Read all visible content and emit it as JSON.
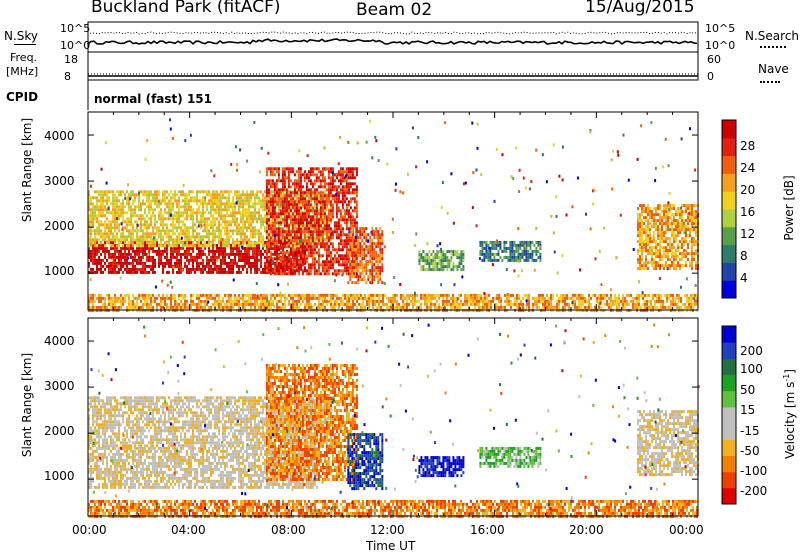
{
  "header": {
    "site": "Buckland Park (fitACF)",
    "beam": "Beam 02",
    "date": "15/Aug/2015"
  },
  "strip_panels": {
    "nsky_label": "N.Sky",
    "nsky_top_tick": "10^5",
    "nsky_bottom_tick": "10^0",
    "nsearch_label": "N.Search",
    "nsearch_top_tick": "10^5",
    "nsearch_bottom_tick": "10^0",
    "freq_label": "Freq.",
    "freq_unit": "[MHz]",
    "freq_top_tick": "18",
    "freq_bottom_tick": "8",
    "nave_label": "Nave",
    "nave_top_tick": "60",
    "nave_bottom_tick": "0",
    "cpid_label": "CPID",
    "cpid_value": "normal (fast) 151"
  },
  "chart_data": [
    {
      "type": "heatmap",
      "name": "power",
      "ylabel": "Slant Range [km]",
      "yticks": [
        "1000",
        "2000",
        "3000",
        "4000"
      ],
      "ylim": [
        200,
        4500
      ],
      "xlim_hours": [
        0,
        24
      ],
      "colorbar_label": "Power [dB]",
      "colorbar_ticks": [
        "4",
        "8",
        "12",
        "16",
        "20",
        "24",
        "28"
      ],
      "colorbar_colors": [
        "#0000dd",
        "#2244aa",
        "#2e7d6a",
        "#5aa04a",
        "#b0d040",
        "#f0d020",
        "#f5a020",
        "#ee6010",
        "#e02010",
        "#cc0000"
      ],
      "echo_regions": [
        {
          "t0": 0.0,
          "t1": 8.5,
          "r0": 1000,
          "r1": 1700,
          "level": 9
        },
        {
          "t0": 0.0,
          "t1": 9.6,
          "r0": 1600,
          "r1": 2800,
          "level": 5
        },
        {
          "t0": 7.0,
          "t1": 10.6,
          "r0": 1000,
          "r1": 3300,
          "level": 8
        },
        {
          "t0": 10.2,
          "t1": 11.6,
          "r0": 800,
          "r1": 2000,
          "level": 7
        },
        {
          "t0": 13.0,
          "t1": 14.8,
          "r0": 1100,
          "r1": 1500,
          "level": 3
        },
        {
          "t0": 15.4,
          "t1": 17.8,
          "r0": 1300,
          "r1": 1700,
          "level": 2
        },
        {
          "t0": 21.6,
          "t1": 24.0,
          "r0": 1100,
          "r1": 2500,
          "level": 6
        },
        {
          "t0": 0.0,
          "t1": 24.0,
          "r0": 200,
          "r1": 550,
          "level": 6
        }
      ]
    },
    {
      "type": "heatmap",
      "name": "velocity",
      "ylabel": "Slant Range [km]",
      "yticks": [
        "1000",
        "2000",
        "3000",
        "4000"
      ],
      "ylim": [
        200,
        4500
      ],
      "xlim_hours": [
        0,
        24
      ],
      "xlabel": "Time UT",
      "xticks": [
        "00:00",
        "04:00",
        "08:00",
        "12:00",
        "16:00",
        "20:00",
        "00:00"
      ],
      "colorbar_label": "Velocity [m s",
      "colorbar_label_sup": "-1",
      "colorbar_label_end": "]",
      "colorbar_ticks": [
        "-200",
        "-100",
        "-50",
        "-15",
        "15",
        "50",
        "100",
        "200"
      ],
      "colorbar_colors": [
        "#e00000",
        "#f04000",
        "#f08000",
        "#f0b020",
        "#c0c0c0",
        "#c0c0c0",
        "#60c040",
        "#20a020",
        "#207040",
        "#2040c0",
        "#0000d0"
      ],
      "echo_regions": [
        {
          "t0": 0.0,
          "t1": 9.0,
          "r0": 800,
          "r1": 1700,
          "level": 4
        },
        {
          "t0": 0.0,
          "t1": 9.6,
          "r0": 1700,
          "r1": 2800,
          "level": 4
        },
        {
          "t0": 7.0,
          "t1": 10.6,
          "r0": 1000,
          "r1": 3500,
          "level": 2
        },
        {
          "t0": 10.2,
          "t1": 11.6,
          "r0": 800,
          "r1": 2000,
          "level": 9
        },
        {
          "t0": 13.0,
          "t1": 14.8,
          "r0": 1100,
          "r1": 1500,
          "level": 10
        },
        {
          "t0": 15.4,
          "t1": 17.8,
          "r0": 1300,
          "r1": 1700,
          "level": 6
        },
        {
          "t0": 21.6,
          "t1": 24.0,
          "r0": 1100,
          "r1": 2500,
          "level": 4
        },
        {
          "t0": 0.0,
          "t1": 24.0,
          "r0": 200,
          "r1": 550,
          "level": 2
        }
      ]
    }
  ]
}
